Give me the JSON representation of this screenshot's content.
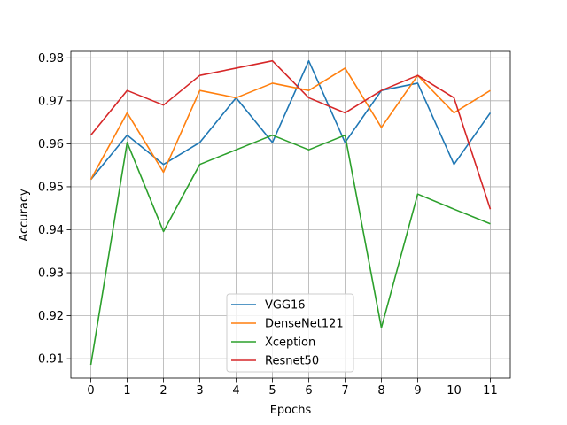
{
  "chart_data": {
    "type": "line",
    "title": "",
    "xlabel": "Epochs",
    "ylabel": "Accuracy",
    "xlim": [
      -0.55,
      11.55
    ],
    "ylim": [
      0.9055,
      0.9815
    ],
    "x": [
      0,
      1,
      2,
      3,
      4,
      5,
      6,
      7,
      8,
      9,
      10,
      11
    ],
    "xticks": [
      "0",
      "1",
      "2",
      "3",
      "4",
      "5",
      "6",
      "7",
      "8",
      "9",
      "10",
      "11"
    ],
    "yticks": [
      0.91,
      0.92,
      0.93,
      0.94,
      0.95,
      0.96,
      0.97,
      0.98
    ],
    "ytick_labels": [
      "0.91",
      "0.92",
      "0.93",
      "0.94",
      "0.95",
      "0.96",
      "0.97",
      "0.98"
    ],
    "grid": true,
    "legend": "lower-center",
    "series": [
      {
        "name": "VGG16",
        "color": "#1f77b4",
        "values": [
          0.9517,
          0.962,
          0.9552,
          0.9603,
          0.9707,
          0.9603,
          0.9793,
          0.9603,
          0.9724,
          0.9741,
          0.9552,
          0.9672
        ]
      },
      {
        "name": "DenseNet121",
        "color": "#ff7f0e",
        "values": [
          0.9517,
          0.9672,
          0.9534,
          0.9724,
          0.9707,
          0.9741,
          0.9724,
          0.9776,
          0.9638,
          0.9759,
          0.9672,
          0.9724
        ]
      },
      {
        "name": "Xception",
        "color": "#2ca02c",
        "values": [
          0.9086,
          0.9603,
          0.9396,
          0.9552,
          0.9586,
          0.962,
          0.9586,
          0.962,
          0.9172,
          0.9483,
          0.9448,
          0.9414
        ]
      },
      {
        "name": "Resnet50",
        "color": "#d62728",
        "values": [
          0.962,
          0.9724,
          0.969,
          0.9759,
          0.9776,
          0.9793,
          0.9707,
          0.9672,
          0.9724,
          0.9759,
          0.9707,
          0.9448
        ]
      }
    ]
  }
}
